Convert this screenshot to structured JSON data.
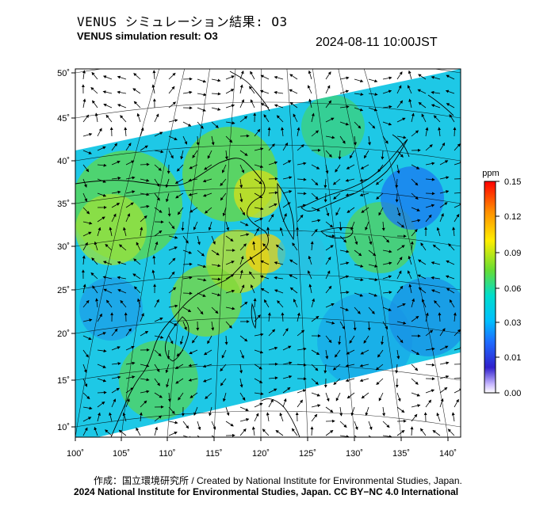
{
  "header": {
    "title_jp": "VENUS シミュレーション結果: O3",
    "title_en": "VENUS simulation result: O3",
    "timestamp": "2024-08-11 10:00JST"
  },
  "map": {
    "lon_ticks": [
      "100˚",
      "105˚",
      "110˚",
      "115˚",
      "120˚",
      "125˚",
      "130˚",
      "135˚",
      "140˚"
    ],
    "lat_ticks": [
      "50˚",
      "45˚",
      "40˚",
      "35˚",
      "30˚",
      "25˚",
      "20˚",
      "15˚",
      "10˚"
    ],
    "lon_range": [
      100,
      142
    ],
    "lat_range": [
      9,
      51
    ],
    "field": "O3 concentration with wind vectors"
  },
  "colorbar": {
    "unit": "ppm",
    "ticks": [
      "0.15",
      "0.12",
      "0.09",
      "0.06",
      "0.03",
      "0.01",
      "0.00"
    ],
    "colors": [
      "#ff0000",
      "#ff8c00",
      "#ffee00",
      "#66dd33",
      "#00ddcc",
      "#1e6bff",
      "#3020cc",
      "#ffffff"
    ]
  },
  "footer": {
    "credit_jp": "作成：国立環境研究所 / Created by National Institute for Environmental Studies, Japan.",
    "copyright": "2024 National Institute for Environmental Studies, Japan. CC BY−NC 4.0 International"
  }
}
